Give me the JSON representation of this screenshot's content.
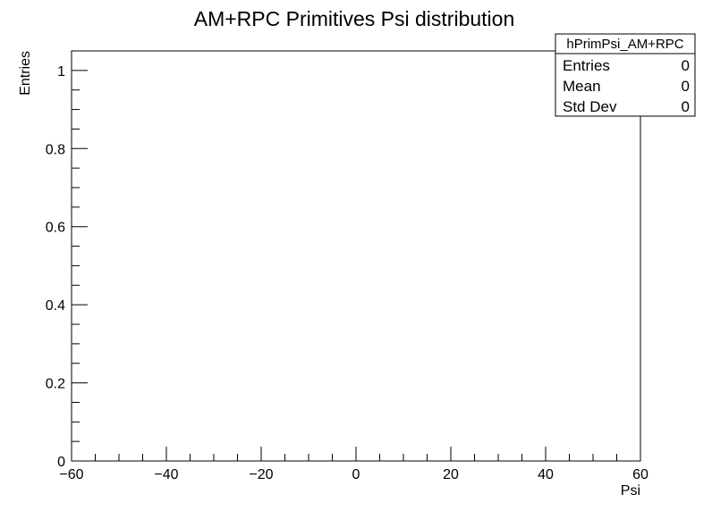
{
  "chart_data": {
    "type": "histogram",
    "title": "AM+RPC Primitives Psi distribution",
    "xlabel": "Psi",
    "ylabel": "Entries",
    "xlim": [
      -60,
      60
    ],
    "ylim": [
      0,
      1.05
    ],
    "x_ticks": [
      -60,
      -40,
      -20,
      0,
      20,
      40,
      60
    ],
    "x_tick_labels": [
      "−60",
      "−40",
      "−20",
      "0",
      "20",
      "40",
      "60"
    ],
    "y_ticks": [
      0,
      0.2,
      0.4,
      0.6,
      0.8,
      1
    ],
    "y_tick_labels": [
      "0",
      "0.2",
      "0.4",
      "0.6",
      "0.8",
      "1"
    ],
    "series": [
      {
        "values": []
      }
    ],
    "grid": false,
    "stats_box": {
      "name": "hPrimPsi_AM+RPC",
      "rows": [
        {
          "label": "Entries",
          "value": "0"
        },
        {
          "label": "Mean",
          "value": "0"
        },
        {
          "label": "Std Dev",
          "value": "0"
        }
      ],
      "placement": "top-right"
    }
  }
}
